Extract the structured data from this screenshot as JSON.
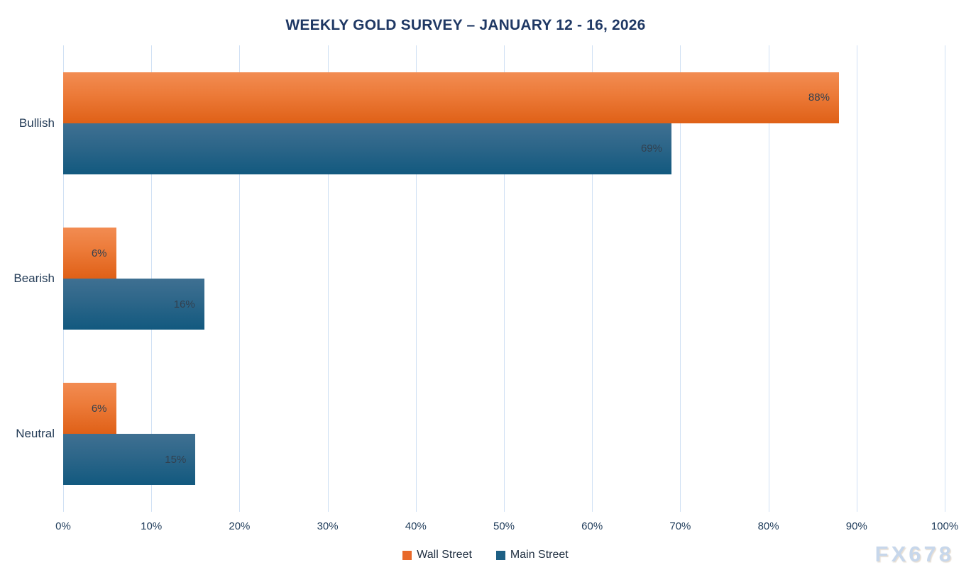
{
  "watermark": "FX678",
  "chart_data": {
    "type": "bar",
    "orientation": "horizontal",
    "title": "WEEKLY GOLD SURVEY – JANUARY 12 - 16, 2026",
    "categories": [
      "Bullish",
      "Bearish",
      "Neutral"
    ],
    "series": [
      {
        "name": "Wall Street",
        "color": "#e8692a",
        "values": [
          88,
          6,
          6
        ]
      },
      {
        "name": "Main Street",
        "color": "#1d5f84",
        "values": [
          69,
          16,
          15
        ]
      }
    ],
    "value_label_format": "percent",
    "x_ticks": [
      "0%",
      "10%",
      "20%",
      "30%",
      "40%",
      "50%",
      "60%",
      "70%",
      "80%",
      "90%",
      "100%"
    ],
    "xlim": [
      0,
      100
    ],
    "grid": "vertical",
    "gridline_color": "#cfe0f4",
    "legend_position": "bottom",
    "title_color": "#1f3864"
  }
}
